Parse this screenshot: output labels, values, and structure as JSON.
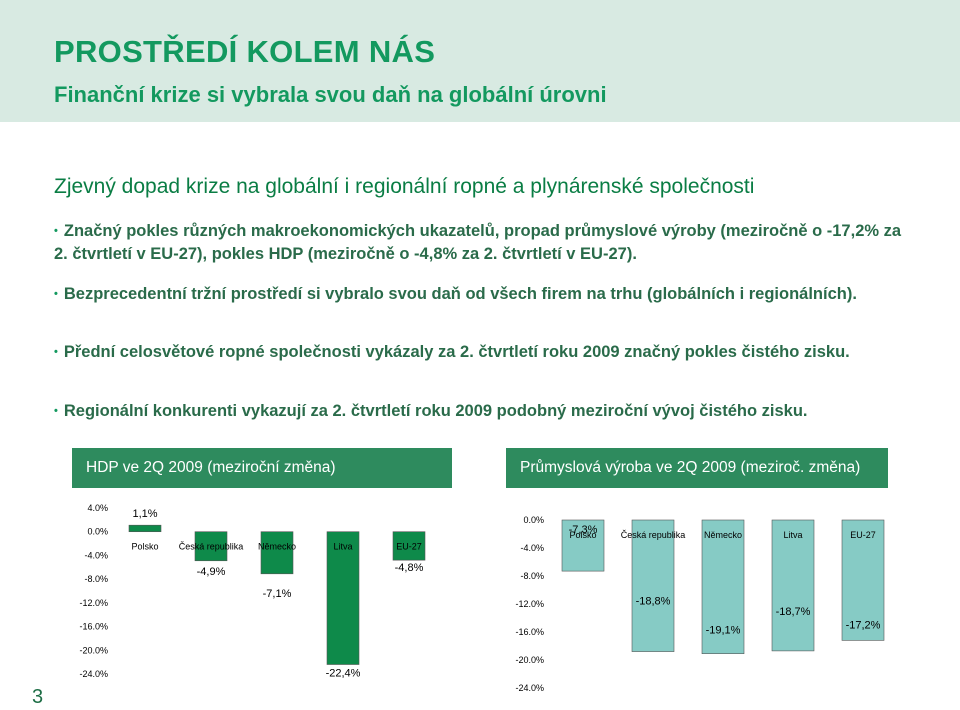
{
  "header": {
    "title": "PROSTŘEDÍ KOLEM NÁS",
    "subtitle": "Finanční krize si vybrala svou daň na globální úrovni"
  },
  "section_heading": "Zjevný dopad krize na globální i regionální ropné a plynárenské společnosti",
  "bullets": [
    "Značný pokles různých makroekonomických ukazatelů, propad průmyslové výroby (meziročně o -17,2% za 2. čtvrtletí v EU-27), pokles HDP (meziročně o -4,8% za 2. čtvrtletí v EU-27).",
    "Bezprecedentní tržní prostředí si vybralo svou daň od všech firem na trhu (globálních i regionálních).",
    "Přední celosvětové ropné společnosti vykázaly za 2. čtvrtletí roku 2009 značný pokles čistého zisku.",
    "Regionální konkurenti vykazují za 2. čtvrtletí roku 2009 podobný meziroční vývoj čistého zisku."
  ],
  "page_number": "3",
  "colors": {
    "title_green": "#13995f",
    "header_bg": "#d8eae2",
    "chart_header_bg": "#2e8b5e",
    "bar_hdp": "#0e8a4a",
    "bar_ind": "#86cbc5"
  },
  "chart_data": [
    {
      "type": "bar",
      "title": "HDP ve 2Q 2009 (meziroční změna)",
      "categories": [
        "Polsko",
        "Česká republika",
        "Německo",
        "Litva",
        "EU-27"
      ],
      "values": [
        1.1,
        -4.9,
        -7.1,
        -22.4,
        -4.8
      ],
      "data_labels": [
        "1,1%",
        "-4,9%",
        "-7,1%",
        "-22,4%",
        "-4,8%"
      ],
      "ylim": [
        -24,
        4
      ],
      "yticks": [
        4,
        0,
        -4,
        -8,
        -12,
        -16,
        -20,
        -24
      ],
      "ytick_labels": [
        "4.0%",
        "0.0%",
        "-4.0%",
        "-8.0%",
        "-12.0%",
        "-16.0%",
        "-20.0%",
        "-24.0%"
      ],
      "xlabel": "",
      "ylabel": "",
      "grid": false,
      "legend": "none"
    },
    {
      "type": "bar",
      "title": "Průmyslová výroba ve 2Q 2009 (meziroč. změna)",
      "categories": [
        "Polsko",
        "Česká republika",
        "Německo",
        "Litva",
        "EU-27"
      ],
      "values": [
        -7.3,
        -18.8,
        -19.1,
        -18.7,
        -17.2
      ],
      "data_labels": [
        "-7,3%",
        "-18,8%",
        "-19,1%",
        "-18,7%",
        "-17,2%"
      ],
      "ylim": [
        -24,
        0
      ],
      "yticks": [
        0,
        -4,
        -8,
        -12,
        -16,
        -20,
        -24
      ],
      "ytick_labels": [
        "0.0%",
        "-4.0%",
        "-8.0%",
        "-12.0%",
        "-16.0%",
        "-20.0%",
        "-24.0%"
      ],
      "xlabel": "",
      "ylabel": "",
      "grid": false,
      "legend": "none"
    }
  ]
}
